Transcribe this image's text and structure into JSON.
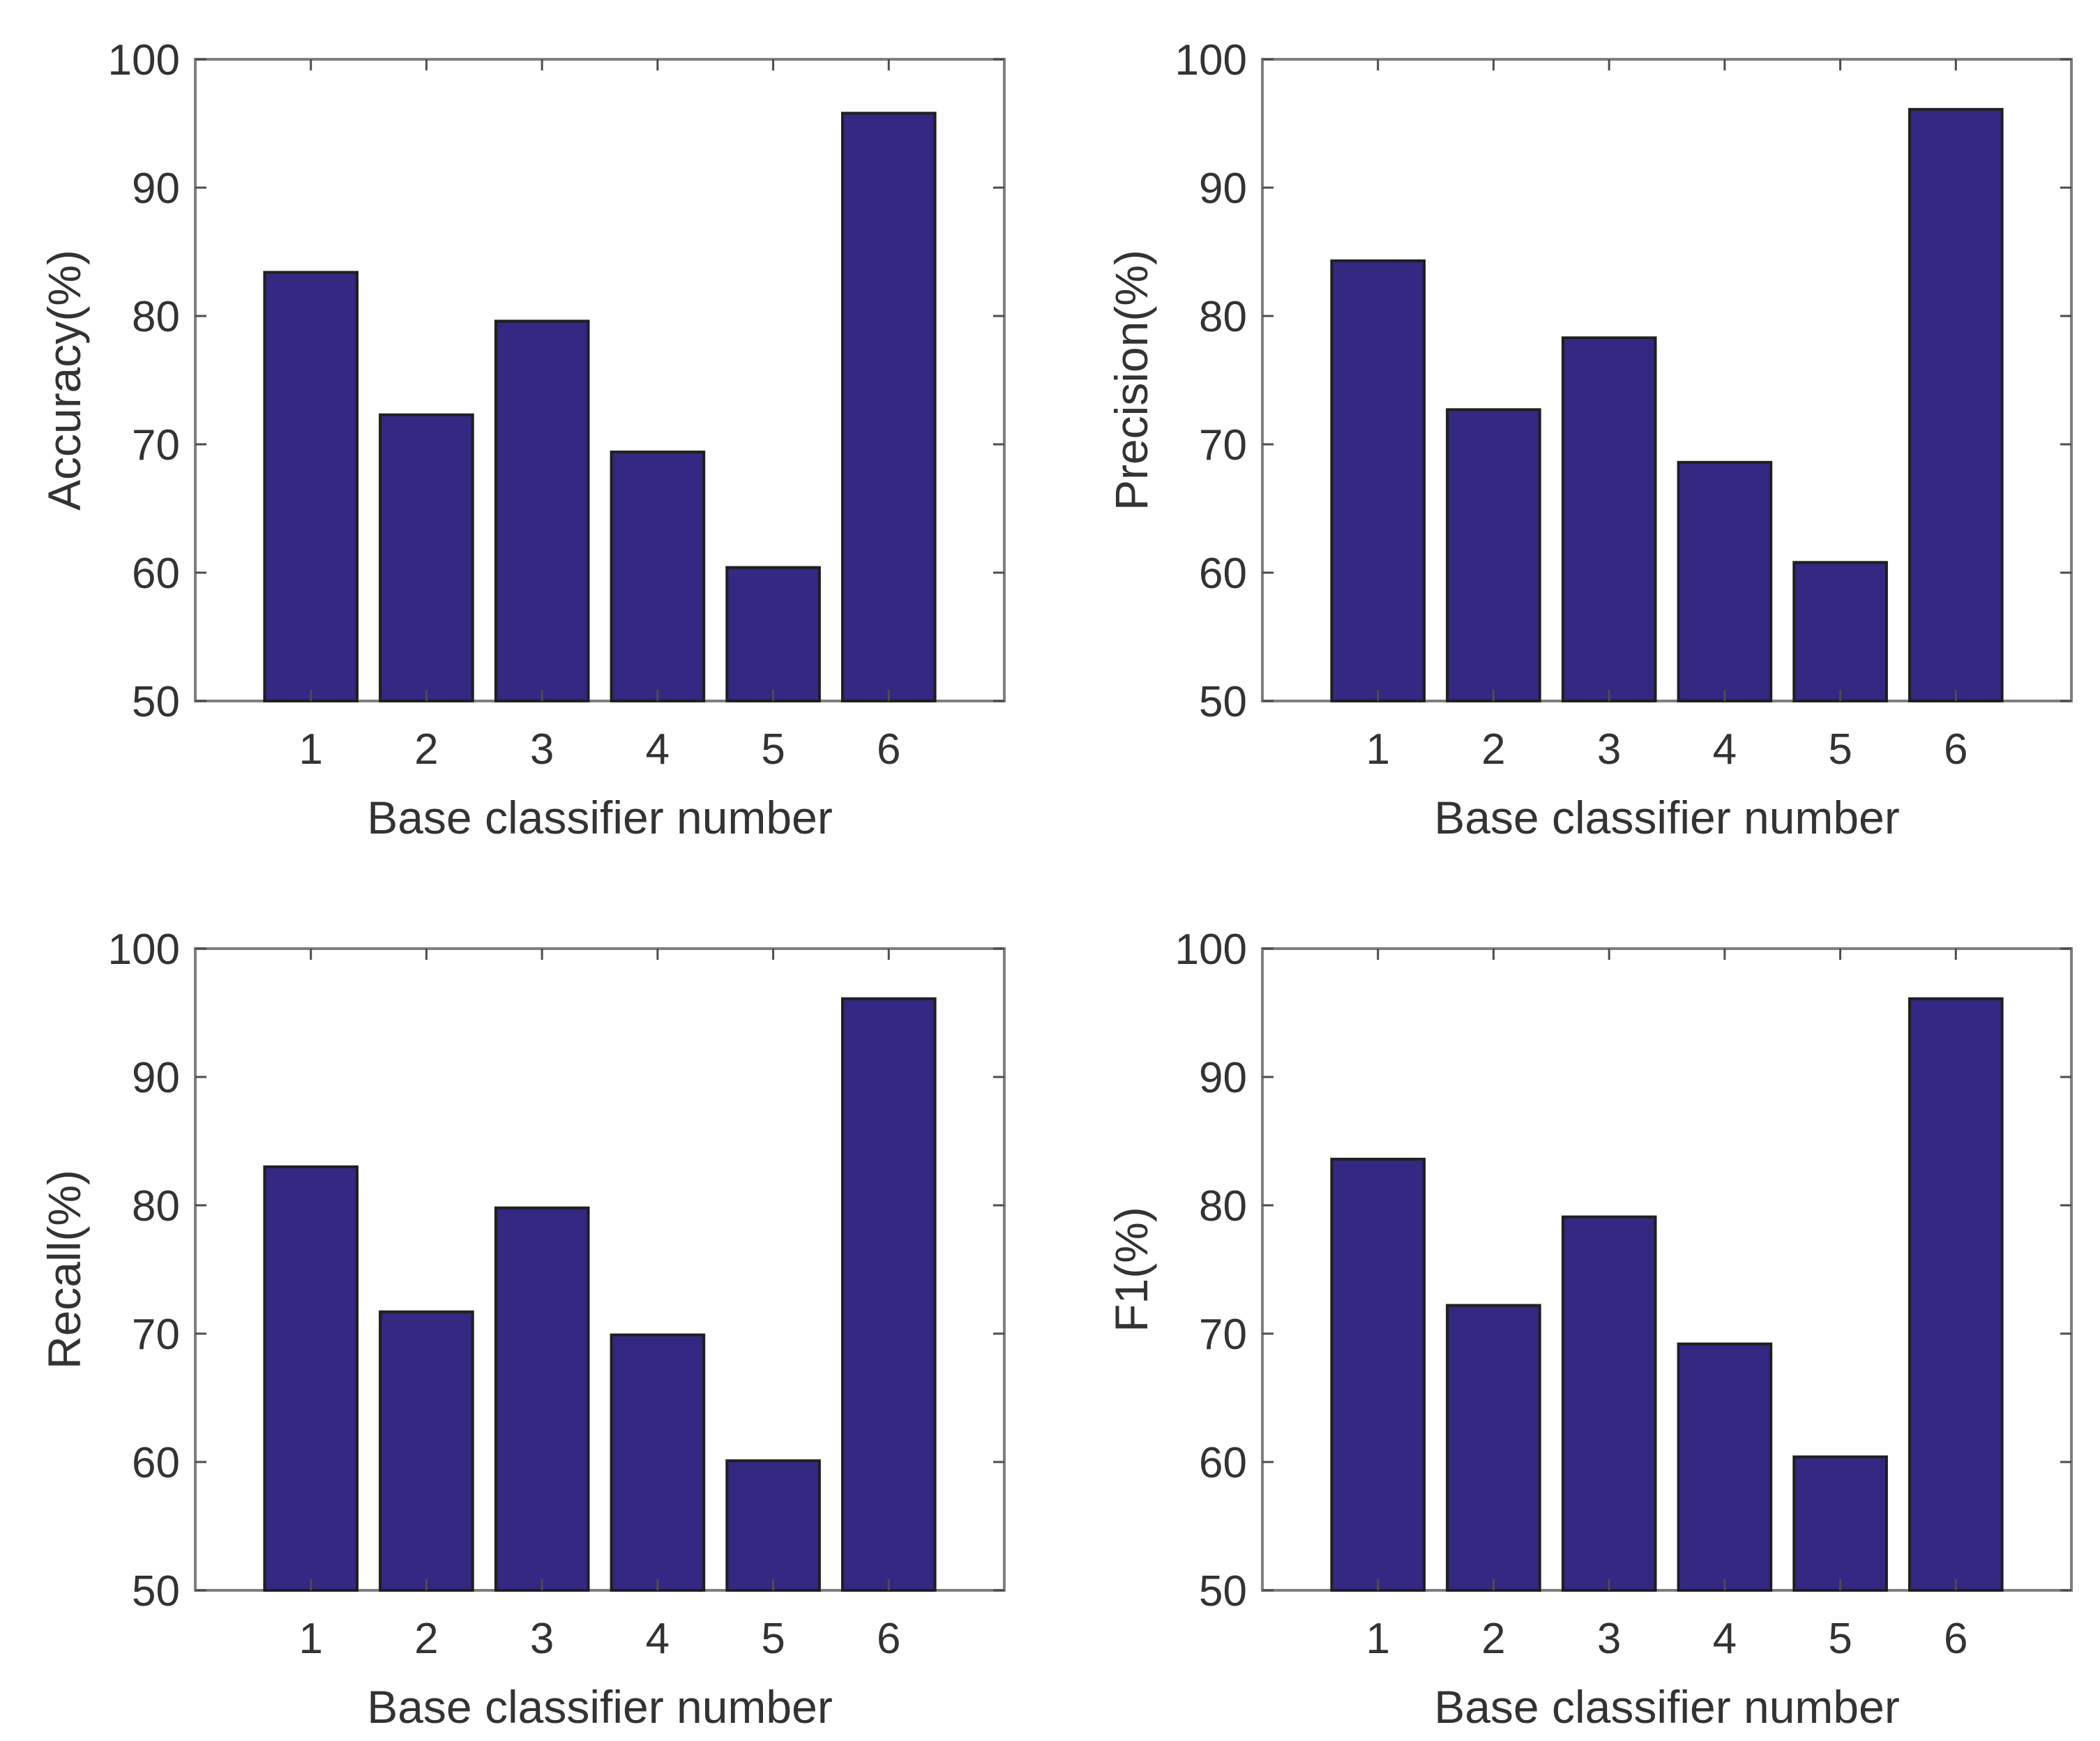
{
  "colors": {
    "bar_fill": "#332882",
    "axis_frame": "#7f7f7f",
    "text": "#333333"
  },
  "chart_data": [
    {
      "type": "bar",
      "title": "",
      "xlabel": "Base classifier number",
      "ylabel": "Accuracy(%)",
      "categories": [
        "1",
        "2",
        "3",
        "4",
        "5",
        "6"
      ],
      "values": [
        83.4,
        72.3,
        79.6,
        69.4,
        60.4,
        95.8
      ],
      "ylim": [
        50,
        100
      ],
      "yticks": [
        50,
        60,
        70,
        80,
        90,
        100
      ],
      "grid": false,
      "legend": "none"
    },
    {
      "type": "bar",
      "title": "",
      "xlabel": "Base classifier number",
      "ylabel": "Precision(%)",
      "categories": [
        "1",
        "2",
        "3",
        "4",
        "5",
        "6"
      ],
      "values": [
        84.3,
        72.7,
        78.3,
        68.6,
        60.8,
        96.1
      ],
      "ylim": [
        50,
        100
      ],
      "yticks": [
        50,
        60,
        70,
        80,
        90,
        100
      ],
      "grid": false,
      "legend": "none"
    },
    {
      "type": "bar",
      "title": "",
      "xlabel": "Base classifier number",
      "ylabel": "Recall(%)",
      "categories": [
        "1",
        "2",
        "3",
        "4",
        "5",
        "6"
      ],
      "values": [
        83.0,
        71.7,
        79.8,
        69.9,
        60.1,
        96.1
      ],
      "ylim": [
        50,
        100
      ],
      "yticks": [
        50,
        60,
        70,
        80,
        90,
        100
      ],
      "grid": false,
      "legend": "none"
    },
    {
      "type": "bar",
      "title": "",
      "xlabel": "Base classifier number",
      "ylabel": "F1(%)",
      "categories": [
        "1",
        "2",
        "3",
        "4",
        "5",
        "6"
      ],
      "values": [
        83.6,
        72.2,
        79.1,
        69.2,
        60.4,
        96.1
      ],
      "ylim": [
        50,
        100
      ],
      "yticks": [
        50,
        60,
        70,
        80,
        90,
        100
      ],
      "grid": false,
      "legend": "none"
    }
  ]
}
